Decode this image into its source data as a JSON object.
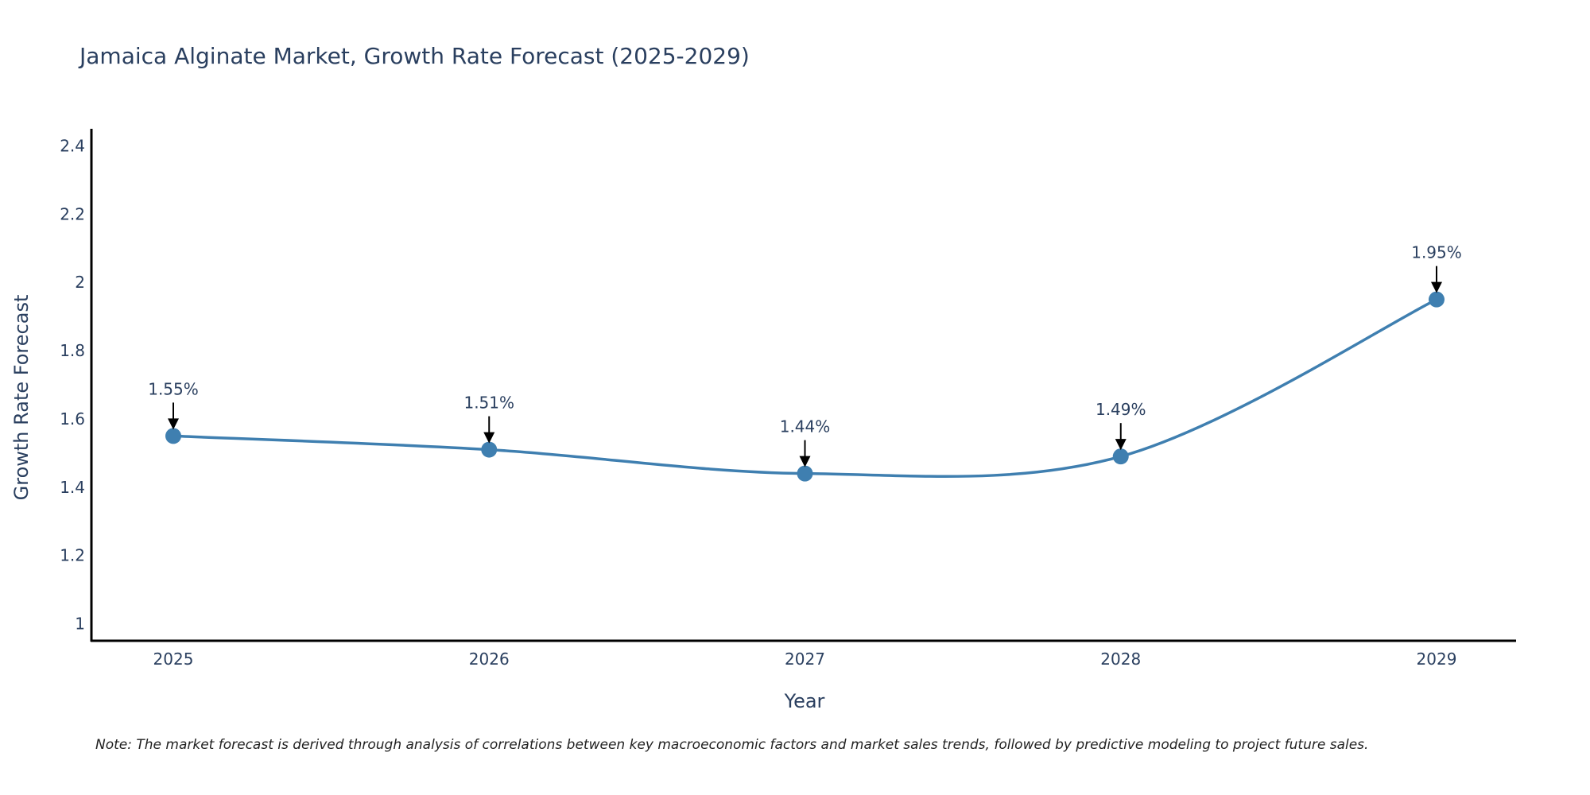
{
  "chart_data": {
    "type": "line",
    "title": "Jamaica Alginate Market, Growth Rate Forecast (2025-2029)",
    "xlabel": "Year",
    "ylabel": "Growth Rate Forecast",
    "categories": [
      "2025",
      "2026",
      "2027",
      "2028",
      "2029"
    ],
    "series": [
      {
        "name": "Growth Rate Forecast",
        "values": [
          1.55,
          1.51,
          1.44,
          1.49,
          1.95
        ],
        "labels": [
          "1.55%",
          "1.51%",
          "1.44%",
          "1.49%",
          "1.95%"
        ],
        "color": "#3f7fb0"
      }
    ],
    "ylim": [
      0.95,
      2.45
    ],
    "yticks": [
      1,
      1.2,
      1.4,
      1.6,
      1.8,
      2,
      2.2,
      2.4
    ],
    "ytick_labels": [
      "1",
      "1.2",
      "1.4",
      "1.6",
      "1.8",
      "2",
      "2.2",
      "2.4"
    ],
    "grid": false,
    "line_shape": "spline"
  },
  "note": "Note: The market forecast is derived through analysis of correlations between key macroeconomic factors and market sales trends, followed by predictive modeling to project future sales.",
  "colors": {
    "line": "#3f7fb0",
    "marker": "#3f7fb0",
    "axis": "#000000",
    "text": "#2a3f5f",
    "arrow": "#000000"
  }
}
